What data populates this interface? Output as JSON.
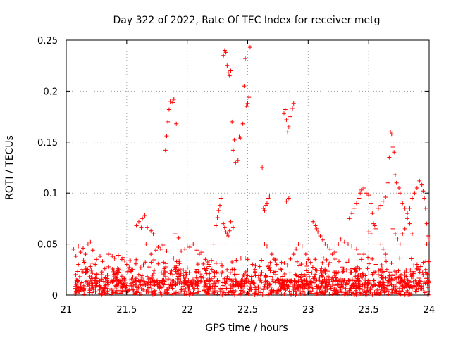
{
  "chart_data": {
    "type": "scatter",
    "title": "Day 322 of 2022, Rate Of TEC Index for receiver metg",
    "xlabel": "GPS time / hours",
    "ylabel": "ROTI / TECUs",
    "xlim": [
      21,
      24
    ],
    "ylim": [
      0,
      0.25
    ],
    "x_ticks": [
      21,
      21.5,
      22,
      22.5,
      23,
      23.5,
      24
    ],
    "x_tick_labels": [
      "21",
      "21.5",
      "22",
      "22.5",
      "23",
      "23.5",
      "24"
    ],
    "y_ticks": [
      0,
      0.05,
      0.1,
      0.15,
      0.2,
      0.25
    ],
    "y_tick_labels": [
      "0",
      "0.05",
      "0.1",
      "0.15",
      "0.2",
      "0.25"
    ],
    "grid": true,
    "marker": "+",
    "color": "#ff0000",
    "points": [
      [
        21.06,
        0.045
      ],
      [
        21.08,
        0.038
      ],
      [
        21.1,
        0.048
      ],
      [
        21.12,
        0.042
      ],
      [
        21.14,
        0.046
      ],
      [
        21.16,
        0.04
      ],
      [
        21.18,
        0.05
      ],
      [
        21.2,
        0.052
      ],
      [
        21.22,
        0.044
      ],
      [
        21.24,
        0.03
      ],
      [
        21.1,
        0.03
      ],
      [
        21.13,
        0.025
      ],
      [
        21.16,
        0.022
      ],
      [
        21.2,
        0.028
      ],
      [
        21.25,
        0.035
      ],
      [
        21.28,
        0.038
      ],
      [
        21.3,
        0.033
      ],
      [
        21.35,
        0.04
      ],
      [
        21.38,
        0.038
      ],
      [
        21.4,
        0.036
      ],
      [
        21.43,
        0.039
      ],
      [
        21.46,
        0.035
      ],
      [
        21.5,
        0.03
      ],
      [
        21.52,
        0.027
      ],
      [
        21.55,
        0.025
      ],
      [
        21.58,
        0.068
      ],
      [
        21.6,
        0.072
      ],
      [
        21.62,
        0.066
      ],
      [
        21.63,
        0.075
      ],
      [
        21.65,
        0.078
      ],
      [
        21.67,
        0.066
      ],
      [
        21.7,
        0.063
      ],
      [
        21.72,
        0.06
      ],
      [
        21.66,
        0.05
      ],
      [
        21.7,
        0.04
      ],
      [
        21.74,
        0.044
      ],
      [
        21.76,
        0.047
      ],
      [
        21.78,
        0.045
      ],
      [
        21.8,
        0.049
      ],
      [
        21.83,
        0.043
      ],
      [
        21.82,
        0.142
      ],
      [
        21.83,
        0.156
      ],
      [
        21.84,
        0.17
      ],
      [
        21.85,
        0.182
      ],
      [
        21.86,
        0.19
      ],
      [
        21.88,
        0.189
      ],
      [
        21.89,
        0.192
      ],
      [
        21.91,
        0.168
      ],
      [
        21.9,
        0.06
      ],
      [
        21.93,
        0.056
      ],
      [
        21.95,
        0.043
      ],
      [
        21.98,
        0.045
      ],
      [
        22.0,
        0.048
      ],
      [
        22.02,
        0.047
      ],
      [
        22.05,
        0.05
      ],
      [
        22.08,
        0.044
      ],
      [
        22.1,
        0.04
      ],
      [
        22.12,
        0.042
      ],
      [
        22.15,
        0.035
      ],
      [
        22.18,
        0.03
      ],
      [
        22.2,
        0.034
      ],
      [
        22.22,
        0.05
      ],
      [
        22.24,
        0.068
      ],
      [
        22.25,
        0.076
      ],
      [
        22.26,
        0.083
      ],
      [
        22.27,
        0.088
      ],
      [
        22.28,
        0.095
      ],
      [
        22.3,
        0.07
      ],
      [
        22.31,
        0.066
      ],
      [
        22.32,
        0.062
      ],
      [
        22.33,
        0.06
      ],
      [
        22.34,
        0.058
      ],
      [
        22.35,
        0.063
      ],
      [
        22.36,
        0.072
      ],
      [
        22.38,
        0.066
      ],
      [
        22.3,
        0.235
      ],
      [
        22.31,
        0.24
      ],
      [
        22.32,
        0.238
      ],
      [
        22.33,
        0.225
      ],
      [
        22.34,
        0.218
      ],
      [
        22.35,
        0.215
      ],
      [
        22.36,
        0.22
      ],
      [
        22.37,
        0.17
      ],
      [
        22.38,
        0.142
      ],
      [
        22.39,
        0.152
      ],
      [
        22.4,
        0.13
      ],
      [
        22.42,
        0.132
      ],
      [
        22.43,
        0.155
      ],
      [
        22.44,
        0.154
      ],
      [
        22.46,
        0.168
      ],
      [
        22.47,
        0.205
      ],
      [
        22.48,
        0.232
      ],
      [
        22.49,
        0.185
      ],
      [
        22.5,
        0.188
      ],
      [
        22.51,
        0.194
      ],
      [
        22.52,
        0.243
      ],
      [
        22.54,
        0.03
      ],
      [
        22.56,
        0.025
      ],
      [
        22.6,
        0.028
      ],
      [
        22.62,
        0.125
      ],
      [
        22.63,
        0.085
      ],
      [
        22.64,
        0.083
      ],
      [
        22.65,
        0.088
      ],
      [
        22.66,
        0.09
      ],
      [
        22.67,
        0.095
      ],
      [
        22.68,
        0.097
      ],
      [
        22.64,
        0.05
      ],
      [
        22.66,
        0.048
      ],
      [
        22.7,
        0.04
      ],
      [
        22.74,
        0.03
      ],
      [
        22.78,
        0.032
      ],
      [
        22.8,
        0.178
      ],
      [
        22.81,
        0.182
      ],
      [
        22.82,
        0.172
      ],
      [
        22.83,
        0.16
      ],
      [
        22.84,
        0.165
      ],
      [
        22.85,
        0.175
      ],
      [
        22.87,
        0.183
      ],
      [
        22.88,
        0.188
      ],
      [
        22.82,
        0.092
      ],
      [
        22.84,
        0.095
      ],
      [
        22.88,
        0.04
      ],
      [
        22.9,
        0.045
      ],
      [
        22.92,
        0.05
      ],
      [
        22.95,
        0.048
      ],
      [
        22.98,
        0.04
      ],
      [
        23.0,
        0.035
      ],
      [
        23.02,
        0.032
      ],
      [
        23.04,
        0.072
      ],
      [
        23.06,
        0.068
      ],
      [
        23.07,
        0.065
      ],
      [
        23.08,
        0.062
      ],
      [
        23.1,
        0.058
      ],
      [
        23.12,
        0.054
      ],
      [
        23.14,
        0.05
      ],
      [
        23.16,
        0.048
      ],
      [
        23.18,
        0.045
      ],
      [
        23.2,
        0.04
      ],
      [
        23.22,
        0.042
      ],
      [
        23.25,
        0.05
      ],
      [
        23.27,
        0.055
      ],
      [
        23.3,
        0.052
      ],
      [
        23.33,
        0.05
      ],
      [
        23.36,
        0.048
      ],
      [
        23.4,
        0.045
      ],
      [
        23.42,
        0.04
      ],
      [
        23.34,
        0.075
      ],
      [
        23.36,
        0.08
      ],
      [
        23.38,
        0.085
      ],
      [
        23.4,
        0.09
      ],
      [
        23.42,
        0.095
      ],
      [
        23.43,
        0.1
      ],
      [
        23.44,
        0.103
      ],
      [
        23.46,
        0.105
      ],
      [
        23.48,
        0.1
      ],
      [
        23.5,
        0.098
      ],
      [
        23.52,
        0.09
      ],
      [
        23.53,
        0.08
      ],
      [
        23.54,
        0.07
      ],
      [
        23.55,
        0.068
      ],
      [
        23.56,
        0.065
      ],
      [
        23.58,
        0.085
      ],
      [
        23.6,
        0.088
      ],
      [
        23.62,
        0.092
      ],
      [
        23.64,
        0.096
      ],
      [
        23.66,
        0.11
      ],
      [
        23.67,
        0.135
      ],
      [
        23.68,
        0.16
      ],
      [
        23.69,
        0.158
      ],
      [
        23.7,
        0.145
      ],
      [
        23.71,
        0.14
      ],
      [
        23.72,
        0.118
      ],
      [
        23.73,
        0.11
      ],
      [
        23.75,
        0.105
      ],
      [
        23.76,
        0.1
      ],
      [
        23.78,
        0.09
      ],
      [
        23.8,
        0.085
      ],
      [
        23.82,
        0.08
      ],
      [
        23.84,
        0.07
      ],
      [
        23.86,
        0.06
      ],
      [
        23.7,
        0.065
      ],
      [
        23.72,
        0.06
      ],
      [
        23.74,
        0.055
      ],
      [
        23.76,
        0.05
      ],
      [
        23.78,
        0.06
      ],
      [
        23.8,
        0.065
      ],
      [
        23.82,
        0.075
      ],
      [
        23.84,
        0.085
      ],
      [
        23.86,
        0.095
      ],
      [
        23.88,
        0.1
      ],
      [
        23.9,
        0.105
      ],
      [
        23.92,
        0.112
      ],
      [
        23.94,
        0.108
      ],
      [
        23.95,
        0.102
      ],
      [
        23.96,
        0.095
      ],
      [
        23.97,
        0.085
      ],
      [
        23.98,
        0.07
      ],
      [
        23.99,
        0.058
      ],
      [
        24.0,
        0.055
      ],
      [
        23.98,
        0.05
      ],
      [
        23.6,
        0.05
      ],
      [
        23.62,
        0.045
      ],
      [
        23.64,
        0.04
      ],
      [
        23.52,
        0.06
      ],
      [
        23.5,
        0.062
      ],
      [
        23.46,
        0.04
      ],
      [
        23.44,
        0.035
      ],
      [
        23.56,
        0.03
      ],
      [
        23.6,
        0.025
      ],
      [
        23.9,
        0.03
      ],
      [
        23.93,
        0.028
      ],
      [
        23.95,
        0.032
      ],
      [
        23.97,
        0.025
      ],
      [
        23.85,
        0.02
      ],
      [
        23.8,
        0.022
      ],
      [
        23.75,
        0.018
      ],
      [
        23.7,
        0.02
      ],
      [
        23.65,
        0.025
      ],
      [
        23.62,
        0.022
      ],
      [
        23.58,
        0.02
      ]
    ]
  }
}
